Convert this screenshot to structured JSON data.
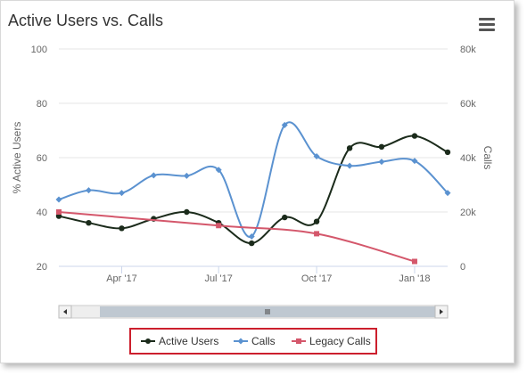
{
  "title": "Active Users vs. Calls",
  "menu_icon": "hamburger-menu-icon",
  "chart_data": {
    "type": "line",
    "title": "Active Users vs. Calls",
    "x": [
      "2017-02-01",
      "2017-02-15",
      "2017-03-01",
      "2017-03-15",
      "2017-04-01",
      "2017-04-15",
      "2017-05-01",
      "2017-05-15",
      "2017-06-01",
      "2017-06-15",
      "2017-07-01",
      "2017-07-15",
      "2017-08-01",
      "2017-08-15",
      "2017-09-01",
      "2017-09-15",
      "2017-10-01",
      "2017-10-15",
      "2017-11-01",
      "2017-11-15",
      "2017-12-01",
      "2017-12-15",
      "2018-01-01",
      "2018-01-15"
    ],
    "x_tick_labels": [
      {
        "label": "Apr '17",
        "x": "2017-04-01"
      },
      {
        "label": "Jul '17",
        "x": "2017-07-01"
      },
      {
        "label": "Oct '17",
        "x": "2017-10-01"
      },
      {
        "label": "Jan '18",
        "x": "2018-01-01"
      }
    ],
    "left_axis": {
      "title": "% Active Users",
      "ticks": [
        20,
        40,
        60,
        80,
        100
      ],
      "range": [
        20,
        100
      ]
    },
    "right_axis": {
      "title": "Calls",
      "ticks": [
        0,
        20000,
        40000,
        60000,
        80000
      ],
      "tick_labels": [
        "0",
        "20k",
        "40k",
        "60k",
        "80k"
      ],
      "range": [
        0,
        80000
      ]
    },
    "series": [
      {
        "name": "Active Users",
        "axis": "left",
        "color": "#1b2b1b",
        "marker": "circle",
        "points": [
          [
            "2017-02-01",
            38.5
          ],
          [
            "2017-03-01",
            36
          ],
          [
            "2017-04-01",
            34
          ],
          [
            "2017-05-01",
            37.5
          ],
          [
            "2017-06-01",
            40
          ],
          [
            "2017-07-01",
            36
          ],
          [
            "2017-08-01",
            28.5
          ],
          [
            "2017-09-01",
            38
          ],
          [
            "2017-10-01",
            36.5
          ],
          [
            "2017-11-01",
            63.5
          ],
          [
            "2017-12-01",
            64
          ],
          [
            "2018-01-01",
            68
          ],
          [
            "2018-02-01",
            62
          ]
        ]
      },
      {
        "name": "Calls",
        "axis": "right",
        "color": "#5b92d0",
        "marker": "diamond",
        "points": [
          [
            "2017-02-01",
            24600
          ],
          [
            "2017-03-01",
            28000
          ],
          [
            "2017-04-01",
            27000
          ],
          [
            "2017-05-01",
            33500
          ],
          [
            "2017-06-01",
            33300
          ],
          [
            "2017-07-01",
            35500
          ],
          [
            "2017-08-01",
            11000
          ],
          [
            "2017-09-01",
            52000
          ],
          [
            "2017-10-01",
            40500
          ],
          [
            "2017-11-01",
            37000
          ],
          [
            "2017-12-01",
            38500
          ],
          [
            "2018-01-01",
            38800
          ],
          [
            "2018-02-01",
            27000
          ]
        ]
      },
      {
        "name": "Legacy Calls",
        "axis": "right",
        "color": "#d4576b",
        "marker": "square",
        "points": [
          [
            "2017-02-01",
            20000
          ],
          [
            "2017-07-01",
            15000
          ],
          [
            "2017-10-01",
            12000
          ],
          [
            "2018-01-01",
            1800
          ]
        ]
      }
    ],
    "grid": true,
    "legend_position": "bottom"
  },
  "navigator": {
    "scroll_left_icon": "arrow-left-icon",
    "scroll_right_icon": "arrow-right-icon",
    "grip_icon": "grip-lines-icon"
  }
}
